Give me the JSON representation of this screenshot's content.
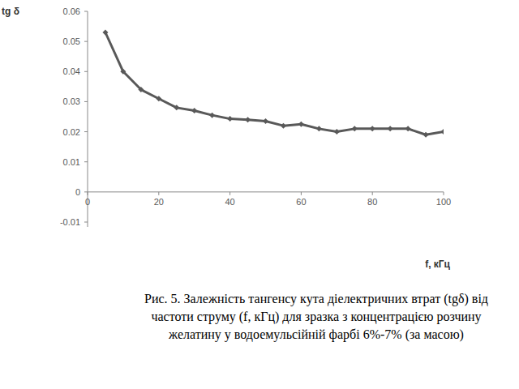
{
  "chart_data": {
    "type": "line",
    "title": "Рис. 5. Залежність тангенсу кута діелектричних втрат (tgδ) від частоти струму (f, кГц) для зразка з концентрацією розчину желатину у водоемульсійній фарбі 6%-7% (за масою)",
    "x_label": "f, кГц",
    "y_label": "tg δ",
    "x": [
      5,
      10,
      15,
      20,
      25,
      30,
      35,
      40,
      45,
      50,
      55,
      60,
      65,
      70,
      75,
      80,
      85,
      90,
      95,
      100
    ],
    "values": [
      0.053,
      0.04,
      0.034,
      0.031,
      0.028,
      0.027,
      0.0255,
      0.0243,
      0.024,
      0.0235,
      0.022,
      0.0225,
      0.021,
      0.02,
      0.021,
      0.021,
      0.021,
      0.021,
      0.019,
      0.02
    ],
    "color": "#595959",
    "marker": "diamond",
    "xlim": [
      0,
      100
    ],
    "xticks": [
      0,
      20,
      40,
      60,
      80,
      100
    ],
    "ylim": [
      -0.01,
      0.06
    ],
    "yticks": [
      -0.01,
      0,
      0.01,
      0.02,
      0.03,
      0.04,
      0.05,
      0.06
    ],
    "grid": false
  }
}
